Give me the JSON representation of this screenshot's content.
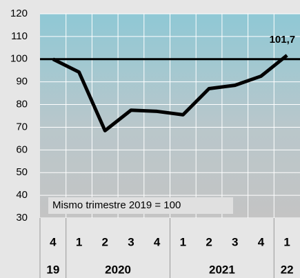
{
  "chart_data": {
    "type": "line",
    "groups": [
      {
        "label": "19",
        "categories": [
          "4"
        ]
      },
      {
        "label": "2020",
        "categories": [
          "1",
          "2",
          "3",
          "4"
        ]
      },
      {
        "label": "2021",
        "categories": [
          "1",
          "2",
          "3",
          "4"
        ]
      },
      {
        "label": "22",
        "categories": [
          "1"
        ]
      }
    ],
    "values": [
      100,
      94.3,
      68.5,
      77.5,
      77,
      75.5,
      87,
      88.5,
      92.5,
      101.7
    ],
    "value_labels": [
      null,
      null,
      null,
      null,
      null,
      null,
      null,
      null,
      null,
      "101,7"
    ],
    "color": "#000000",
    "reference_line": 100,
    "annotation": "Mismo trimestre 2019 = 100",
    "ylim": [
      30,
      120
    ],
    "yticks": [
      30,
      40,
      50,
      60,
      70,
      80,
      90,
      100,
      110,
      120
    ],
    "grid": true
  }
}
